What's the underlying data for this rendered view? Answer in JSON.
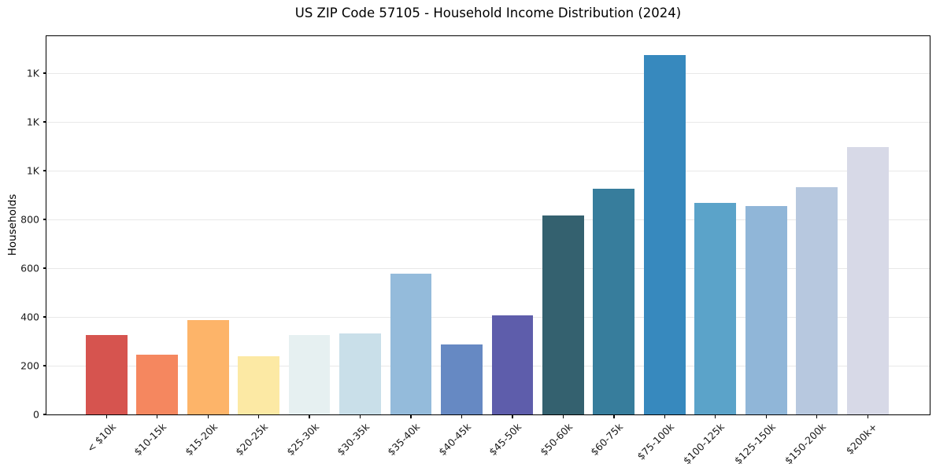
{
  "title": "US ZIP Code 57105 - Household Income Distribution (2024)",
  "chart_data": {
    "type": "bar",
    "title": "US ZIP Code 57105 - Household Income Distribution (2024)",
    "xlabel": "",
    "ylabel": "Households",
    "categories": [
      "< $10k",
      "$10-15k",
      "$15-20k",
      "$20-25k",
      "$25-30k",
      "$30-35k",
      "$35-40k",
      "$40-45k",
      "$45-50k",
      "$50-60k",
      "$60-75k",
      "$75-100k",
      "$100-125k",
      "$125-150k",
      "$150-200k",
      "$200k+"
    ],
    "values": [
      327,
      246,
      388,
      240,
      327,
      331,
      576,
      286,
      406,
      817,
      926,
      1476,
      867,
      855,
      931,
      1096
    ],
    "bar_colors": [
      "#d6544f",
      "#f5875f",
      "#fdb469",
      "#fce9a4",
      "#e6f0f1",
      "#c9dfe9",
      "#94bbdb",
      "#6689c3",
      "#5e5dab",
      "#34616f",
      "#377d9c",
      "#3789be",
      "#5ba3c9",
      "#90b6d8",
      "#b7c8df",
      "#d7d9e7"
    ],
    "ylim": [
      0,
      1550
    ],
    "yticks": [
      {
        "value": 0,
        "label": "0"
      },
      {
        "value": 200,
        "label": "200"
      },
      {
        "value": 400,
        "label": "400"
      },
      {
        "value": 600,
        "label": "600"
      },
      {
        "value": 800,
        "label": "800"
      },
      {
        "value": 1000,
        "label": "1K"
      },
      {
        "value": 1200,
        "label": "1K"
      },
      {
        "value": 1400,
        "label": "1K"
      }
    ],
    "grid": "horizontal",
    "gridline_color": "#e8e8e8",
    "legend": "none",
    "background": "#ffffff"
  }
}
